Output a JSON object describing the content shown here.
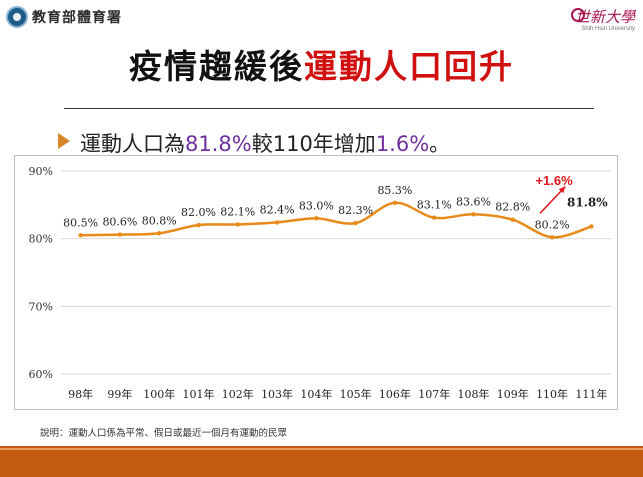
{
  "header": {
    "ministry_name": "教育部體育署",
    "university_name": "世新大學",
    "university_name_en": "Shih Hsin University"
  },
  "title": {
    "part1": "疫情趨緩後",
    "part2": "運動人口回升"
  },
  "subtitle": {
    "part1": "運動人口為",
    "value1": "81.8%",
    "part2": "較110年增加",
    "value2": "1.6%",
    "part3": "。"
  },
  "chart_data": {
    "type": "line",
    "categories": [
      "98年",
      "99年",
      "100年",
      "101年",
      "102年",
      "103年",
      "104年",
      "105年",
      "106年",
      "107年",
      "108年",
      "109年",
      "110年",
      "111年"
    ],
    "values": [
      80.5,
      80.6,
      80.8,
      82.0,
      82.1,
      82.4,
      83.0,
      82.3,
      85.3,
      83.1,
      83.6,
      82.8,
      80.2,
      81.8
    ],
    "data_labels": [
      "80.5%",
      "80.6%",
      "80.8%",
      "82.0%",
      "82.1%",
      "82.4%",
      "83.0%",
      "82.3%",
      "85.3%",
      "83.1%",
      "83.6%",
      "82.8%",
      "80.2%",
      "81.8%"
    ],
    "y_ticks": [
      "90%",
      "80%",
      "70%",
      "60%"
    ],
    "y_tick_values": [
      90,
      80,
      70,
      60
    ],
    "ylim": [
      60,
      90
    ],
    "grid": true,
    "annotation": "+1.6%",
    "line_color": "#e88a1a",
    "annotation_color": "#e0161a"
  },
  "footnote": "說明：運動人口係為平常、假日或最近一個月有運動的民眾",
  "colors": {
    "accent": "#c55a11",
    "title_highlight": "#d00f0f",
    "subtitle_number": "#7030a0"
  }
}
